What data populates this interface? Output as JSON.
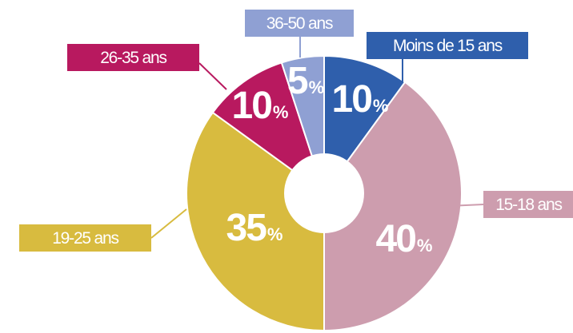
{
  "chart_data": {
    "type": "pie",
    "title": "",
    "unit_suffix": "%",
    "slices": [
      {
        "label": "Moins de 15 ans",
        "value": 10,
        "color": "#2f5fac"
      },
      {
        "label": "15-18 ans",
        "value": 40,
        "color": "#cd9dae"
      },
      {
        "label": "19-25 ans",
        "value": 35,
        "color": "#d8bb3f"
      },
      {
        "label": "26-35 ans",
        "value": 10,
        "color": "#b8195f"
      },
      {
        "label": "36-50 ans",
        "value": 5,
        "color": "#8fa0d3"
      }
    ]
  }
}
